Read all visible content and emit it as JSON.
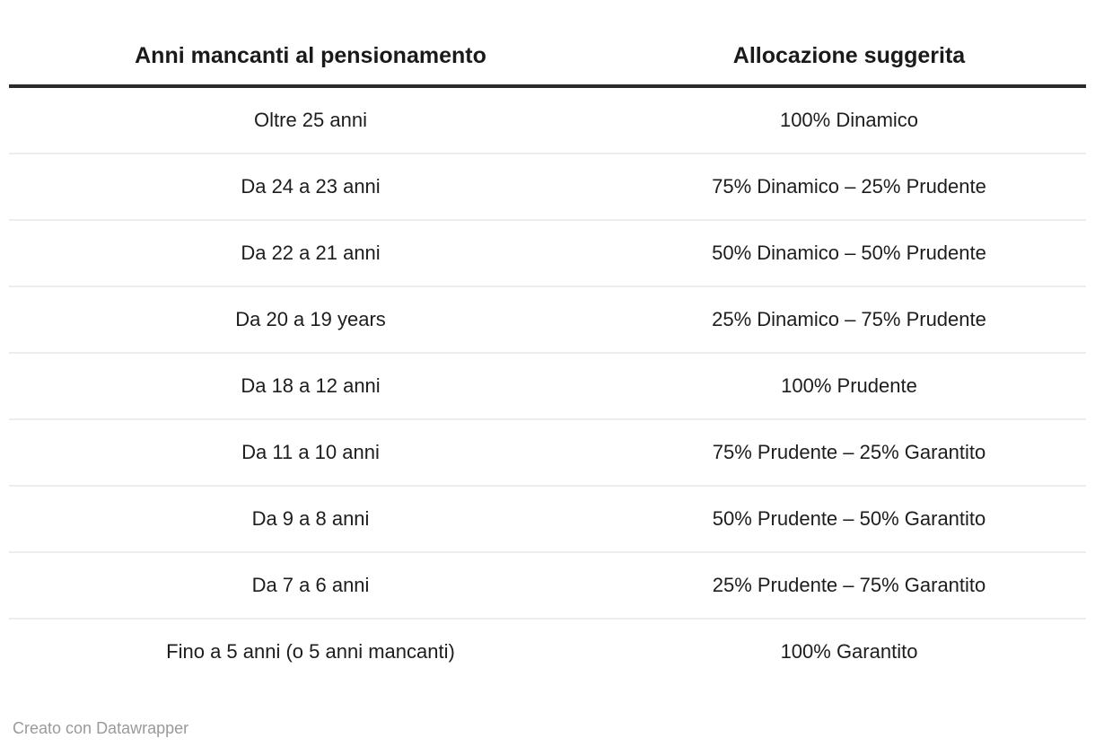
{
  "chart_data": {
    "type": "table",
    "columns": [
      "Anni mancanti al pensionamento",
      "Allocazione suggerita"
    ],
    "rows": [
      [
        "Oltre 25 anni",
        "100% Dinamico"
      ],
      [
        "Da 24 a 23 anni",
        "75% Dinamico – 25% Prudente"
      ],
      [
        "Da 22 a 21 anni",
        "50% Dinamico – 50% Prudente"
      ],
      [
        "Da 20 a 19 years",
        "25% Dinamico – 75% Prudente"
      ],
      [
        "Da 18 a 12 anni",
        "100% Prudente"
      ],
      [
        "Da 11 a 10 anni",
        "75% Prudente – 25% Garantito"
      ],
      [
        "Da 9 a 8 anni",
        "50% Prudente – 50% Garantito"
      ],
      [
        "Da 7 a 6 anni",
        "25% Prudente – 75% Garantito"
      ],
      [
        "Fino a 5 anni (o 5 anni mancanti)",
        "100% Garantito"
      ]
    ],
    "legend_position": "none",
    "grid": "horizontal-row-separators"
  },
  "footer": {
    "prefix": "Creato con ",
    "link_label": "Datawrapper"
  },
  "colors": {
    "header_text": "#1a1a1a",
    "cell_text": "#1d1d1d",
    "header_rule": "#2b2b2b",
    "row_separator": "#ededed",
    "footer_text": "#9a9a9a",
    "background": "#ffffff"
  }
}
